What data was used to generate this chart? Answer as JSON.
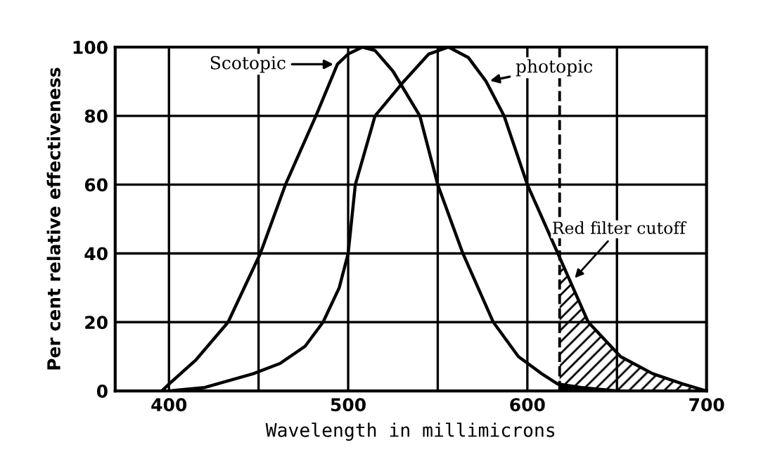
{
  "chart_data": {
    "type": "line",
    "xlabel": "Wavelength in millimicrons",
    "ylabel": "Per cent relative effectiveness",
    "series": [
      {
        "name": "Scotopic",
        "color": "#000000",
        "x": [
          396,
          400,
          415,
          433,
          451,
          465,
          482,
          494,
          500,
          508,
          515,
          525,
          540,
          550,
          564,
          581,
          595,
          608,
          617,
          630,
          640,
          650
        ],
        "values": [
          0,
          2,
          9,
          20,
          40,
          60,
          80,
          95,
          98,
          100,
          99,
          93,
          80,
          60,
          40,
          20,
          10,
          5,
          2,
          1,
          0.5,
          0
        ]
      },
      {
        "name": "photopic",
        "color": "#000000",
        "x": [
          400,
          420,
          447,
          462,
          476,
          486,
          495,
          500,
          504,
          515,
          531,
          545,
          556,
          567,
          577,
          587,
          600,
          617,
          634,
          652,
          670,
          687,
          700
        ],
        "values": [
          0,
          1,
          5,
          8,
          13,
          20,
          30,
          40,
          60,
          80,
          90,
          98,
          100,
          97,
          90,
          80,
          60,
          40,
          20,
          10,
          5,
          2,
          0
        ]
      },
      {
        "type": "area",
        "color": "#000000",
        "x": [
          618,
          634,
          652,
          670,
          687,
          700
        ],
        "values": [
          39,
          20,
          10,
          5,
          2,
          0
        ]
      },
      {
        "type": "area",
        "color": "#000000",
        "x": [
          618,
          630,
          640,
          650
        ],
        "values": [
          2,
          1,
          0.5,
          0
        ]
      }
    ],
    "xlim": [
      370,
      700
    ],
    "ylim": [
      0,
      100
    ],
    "xticks": [
      400,
      {
        "value": 450,
        "label": null
      },
      500,
      {
        "value": 550,
        "label": null
      },
      600,
      {
        "value": 650,
        "label": null
      },
      700
    ],
    "yticks": [
      0,
      20,
      40,
      60,
      80,
      100
    ],
    "grid": true,
    "legend": "top",
    "marker": "none",
    "line_style": "solid",
    "ref_lines": [
      {
        "axis": "x",
        "value": 618,
        "color": "#000000",
        "line_style": "dashed"
      }
    ],
    "annotations": [
      {
        "text": "Red filter cutoff",
        "x": 625,
        "y": 32
      }
    ]
  }
}
